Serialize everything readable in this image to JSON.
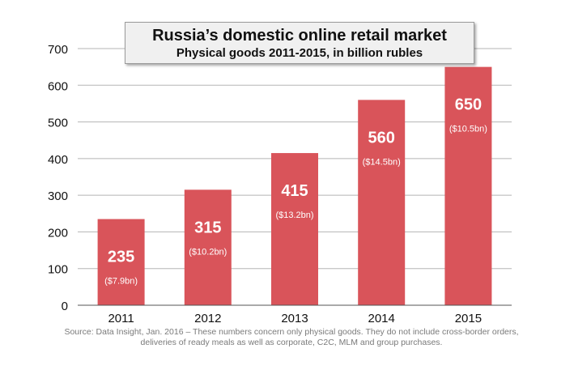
{
  "chart_data": {
    "type": "bar",
    "title": "Russia’s domestic online retail market",
    "subtitle": "Physical goods 2011-2015, in billion rubles",
    "categories": [
      "2011",
      "2012",
      "2013",
      "2014",
      "2015"
    ],
    "values": [
      235,
      315,
      415,
      560,
      650
    ],
    "value_labels": [
      "235",
      "315",
      "415",
      "560",
      "650"
    ],
    "secondary_labels": [
      "($7.9bn)",
      "($10.2bn)",
      "($13.2bn)",
      "($14.5bn)",
      "($10.5bn)"
    ],
    "yticks": [
      "0",
      "100",
      "200",
      "300",
      "400",
      "500",
      "600",
      "700"
    ],
    "ylim": [
      0,
      700
    ],
    "grid": true,
    "bar_color": "#d9545a",
    "xlabel": "",
    "ylabel": ""
  },
  "source": {
    "line1": "Source: Data Insight, Jan. 2016 – These numbers concern only physical goods. They do not include cross-border orders,",
    "line2": "deliveries of ready meals as well as corporate, C2C, MLM and group purchases."
  }
}
